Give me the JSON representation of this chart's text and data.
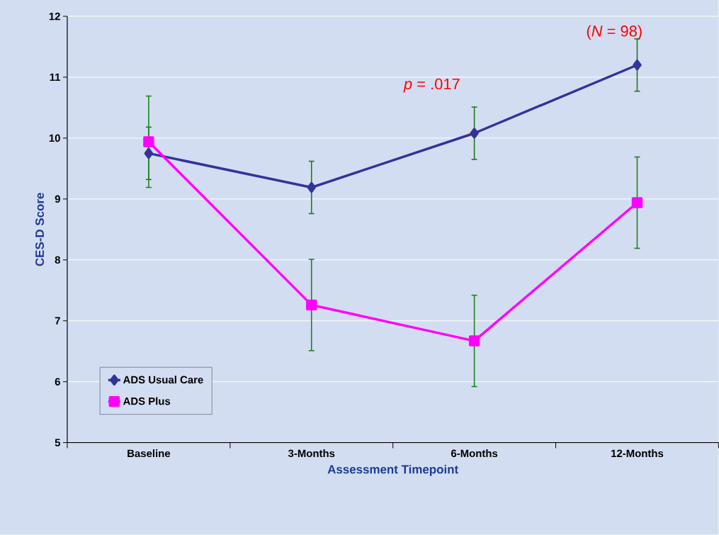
{
  "chart_data": {
    "type": "line",
    "xlabel": "Assessment  Timepoint",
    "ylabel": "CES-D Score",
    "categories": [
      "Baseline",
      "3-Months",
      "6-Months",
      "12-Months"
    ],
    "series": [
      {
        "name": "ADS Usual Care",
        "color": "#33339a",
        "marker": "diamond",
        "values": [
          9.75,
          9.19,
          10.08,
          11.2
        ],
        "errors": [
          0.43,
          0.43,
          0.43,
          0.43
        ]
      },
      {
        "name": "ADS Plus",
        "color": "#ff00ff",
        "marker": "square",
        "values": [
          9.94,
          7.26,
          6.67,
          8.94
        ],
        "errors": [
          0.75,
          0.75,
          0.75,
          0.75
        ]
      }
    ],
    "ylim": [
      5,
      12
    ],
    "yticks": [
      5,
      6,
      7,
      8,
      9,
      10,
      11,
      12
    ],
    "grid": "y",
    "legend": "bottom left",
    "annotations": [
      "*p* = .017",
      "(*N* = 98)"
    ]
  }
}
